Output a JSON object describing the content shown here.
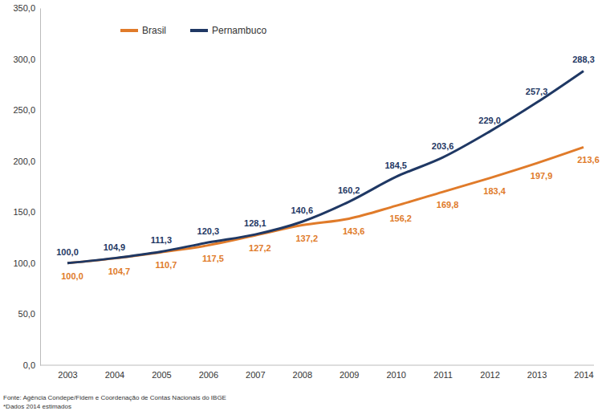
{
  "chart_data": {
    "type": "line",
    "categories": [
      "2003",
      "2004",
      "2005",
      "2006",
      "2007",
      "2008",
      "2009",
      "2010",
      "2011",
      "2012",
      "2013",
      "2014"
    ],
    "series": [
      {
        "name": "Brasil",
        "color": "#e07b2a",
        "values": [
          100.0,
          104.7,
          110.7,
          117.5,
          127.2,
          137.2,
          143.6,
          156.2,
          169.8,
          183.4,
          197.9,
          213.6
        ],
        "value_labels": [
          "100,0",
          "104,7",
          "110,7",
          "117,5",
          "127,2",
          "137,2",
          "143,6",
          "156,2",
          "169,8",
          "183,4",
          "197,9",
          "213,6"
        ]
      },
      {
        "name": "Pernambuco",
        "color": "#1f3864",
        "values": [
          100.0,
          104.9,
          111.3,
          120.3,
          128.1,
          140.6,
          160.2,
          184.5,
          203.6,
          229.0,
          257.3,
          288.3
        ],
        "value_labels": [
          "100,0",
          "104,9",
          "111,3",
          "120,3",
          "128,1",
          "140,6",
          "160,2",
          "184,5",
          "203,6",
          "229,0",
          "257,3",
          "288,3"
        ]
      }
    ],
    "ylim": [
      0,
      350
    ],
    "yticks": [
      {
        "value": 0,
        "label": "0,0"
      },
      {
        "value": 50,
        "label": "50,0"
      },
      {
        "value": 100,
        "label": "100,0"
      },
      {
        "value": 150,
        "label": "150,0"
      },
      {
        "value": 200,
        "label": "200,0"
      },
      {
        "value": 250,
        "label": "250,0"
      },
      {
        "value": 300,
        "label": "300,0"
      },
      {
        "value": 350,
        "label": "350,0"
      }
    ],
    "data_labels": true,
    "grid": false,
    "legend": "top-left",
    "notes": [
      "Fonte: Agência Condepe/Fidem e Coordenação de Contas Nacionais do IBGE",
      "*Dados 2014 estimados"
    ]
  }
}
